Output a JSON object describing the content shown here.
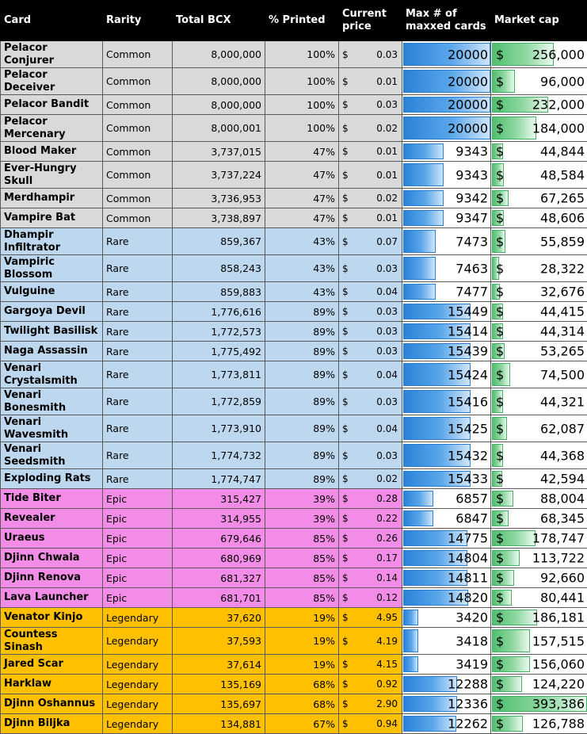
{
  "headers": {
    "card": "Card",
    "rarity": "Rarity",
    "total_bcx": "Total BCX",
    "pct_printed": "% Printed",
    "current_price": "Current price",
    "max_maxxed": "Max # of maxxed cards",
    "market_cap": "Market cap"
  },
  "currency_symbol": "$",
  "rarity_colors": {
    "Common": "#d9d9d9",
    "Rare": "#bdd7ee",
    "Epic": "#f28ce6",
    "Legendary": "#ffc000"
  },
  "databar_colors": {
    "max_cards": "#2a82d8",
    "market_cap": "#4fbf6d"
  },
  "databar_scale": {
    "max_cards_max": 20000,
    "market_cap_max": 393386
  },
  "rows": [
    {
      "card": "Pelacor Conjurer",
      "rarity": "Common",
      "bcx": "8,000,000",
      "pct": "100%",
      "price": "0.03",
      "maxcards": "20000",
      "maxcards_value": 20000,
      "cap": "256,000",
      "cap_value": 256000
    },
    {
      "card": "Pelacor Deceiver",
      "rarity": "Common",
      "bcx": "8,000,000",
      "pct": "100%",
      "price": "0.01",
      "maxcards": "20000",
      "maxcards_value": 20000,
      "cap": "96,000",
      "cap_value": 96000
    },
    {
      "card": "Pelacor Bandit",
      "rarity": "Common",
      "bcx": "8,000,000",
      "pct": "100%",
      "price": "0.03",
      "maxcards": "20000",
      "maxcards_value": 20000,
      "cap": "232,000",
      "cap_value": 232000
    },
    {
      "card": "Pelacor Mercenary",
      "rarity": "Common",
      "bcx": "8,000,001",
      "pct": "100%",
      "price": "0.02",
      "maxcards": "20000",
      "maxcards_value": 20000,
      "cap": "184,000",
      "cap_value": 184000
    },
    {
      "card": "Blood Maker",
      "rarity": "Common",
      "bcx": "3,737,015",
      "pct": "47%",
      "price": "0.01",
      "maxcards": "9343",
      "maxcards_value": 9343,
      "cap": "44,844",
      "cap_value": 44844
    },
    {
      "card": "Ever-Hungry Skull",
      "rarity": "Common",
      "bcx": "3,737,224",
      "pct": "47%",
      "price": "0.01",
      "maxcards": "9343",
      "maxcards_value": 9343,
      "cap": "48,584",
      "cap_value": 48584
    },
    {
      "card": "Merdhampir",
      "rarity": "Common",
      "bcx": "3,736,953",
      "pct": "47%",
      "price": "0.02",
      "maxcards": "9342",
      "maxcards_value": 9342,
      "cap": "67,265",
      "cap_value": 67265
    },
    {
      "card": "Vampire Bat",
      "rarity": "Common",
      "bcx": "3,738,897",
      "pct": "47%",
      "price": "0.01",
      "maxcards": "9347",
      "maxcards_value": 9347,
      "cap": "48,606",
      "cap_value": 48606
    },
    {
      "card": "Dhampir Infiltrator",
      "rarity": "Rare",
      "bcx": "859,367",
      "pct": "43%",
      "price": "0.07",
      "maxcards": "7473",
      "maxcards_value": 7473,
      "cap": "55,859",
      "cap_value": 55859
    },
    {
      "card": "Vampiric Blossom",
      "rarity": "Rare",
      "bcx": "858,243",
      "pct": "43%",
      "price": "0.03",
      "maxcards": "7463",
      "maxcards_value": 7463,
      "cap": "28,322",
      "cap_value": 28322
    },
    {
      "card": "Vulguine",
      "rarity": "Rare",
      "bcx": "859,883",
      "pct": "43%",
      "price": "0.04",
      "maxcards": "7477",
      "maxcards_value": 7477,
      "cap": "32,676",
      "cap_value": 32676
    },
    {
      "card": "Gargoya Devil",
      "rarity": "Rare",
      "bcx": "1,776,616",
      "pct": "89%",
      "price": "0.03",
      "maxcards": "15449",
      "maxcards_value": 15449,
      "cap": "44,415",
      "cap_value": 44415
    },
    {
      "card": "Twilight Basilisk",
      "rarity": "Rare",
      "bcx": "1,772,573",
      "pct": "89%",
      "price": "0.03",
      "maxcards": "15414",
      "maxcards_value": 15414,
      "cap": "44,314",
      "cap_value": 44314
    },
    {
      "card": "Naga Assassin",
      "rarity": "Rare",
      "bcx": "1,775,492",
      "pct": "89%",
      "price": "0.03",
      "maxcards": "15439",
      "maxcards_value": 15439,
      "cap": "53,265",
      "cap_value": 53265
    },
    {
      "card": "Venari Crystalsmith",
      "rarity": "Rare",
      "bcx": "1,773,811",
      "pct": "89%",
      "price": "0.04",
      "maxcards": "15424",
      "maxcards_value": 15424,
      "cap": "74,500",
      "cap_value": 74500
    },
    {
      "card": "Venari Bonesmith",
      "rarity": "Rare",
      "bcx": "1,772,859",
      "pct": "89%",
      "price": "0.03",
      "maxcards": "15416",
      "maxcards_value": 15416,
      "cap": "44,321",
      "cap_value": 44321
    },
    {
      "card": "Venari Wavesmith",
      "rarity": "Rare",
      "bcx": "1,773,910",
      "pct": "89%",
      "price": "0.04",
      "maxcards": "15425",
      "maxcards_value": 15425,
      "cap": "62,087",
      "cap_value": 62087
    },
    {
      "card": "Venari Seedsmith",
      "rarity": "Rare",
      "bcx": "1,774,732",
      "pct": "89%",
      "price": "0.03",
      "maxcards": "15432",
      "maxcards_value": 15432,
      "cap": "44,368",
      "cap_value": 44368
    },
    {
      "card": "Exploding Rats",
      "rarity": "Rare",
      "bcx": "1,774,747",
      "pct": "89%",
      "price": "0.02",
      "maxcards": "15433",
      "maxcards_value": 15433,
      "cap": "42,594",
      "cap_value": 42594
    },
    {
      "card": "Tide Biter",
      "rarity": "Epic",
      "bcx": "315,427",
      "pct": "39%",
      "price": "0.28",
      "maxcards": "6857",
      "maxcards_value": 6857,
      "cap": "88,004",
      "cap_value": 88004
    },
    {
      "card": "Revealer",
      "rarity": "Epic",
      "bcx": "314,955",
      "pct": "39%",
      "price": "0.22",
      "maxcards": "6847",
      "maxcards_value": 6847,
      "cap": "68,345",
      "cap_value": 68345
    },
    {
      "card": "Uraeus",
      "rarity": "Epic",
      "bcx": "679,646",
      "pct": "85%",
      "price": "0.26",
      "maxcards": "14775",
      "maxcards_value": 14775,
      "cap": "178,747",
      "cap_value": 178747
    },
    {
      "card": "Djinn Chwala",
      "rarity": "Epic",
      "bcx": "680,969",
      "pct": "85%",
      "price": "0.17",
      "maxcards": "14804",
      "maxcards_value": 14804,
      "cap": "113,722",
      "cap_value": 113722
    },
    {
      "card": "Djinn Renova",
      "rarity": "Epic",
      "bcx": "681,327",
      "pct": "85%",
      "price": "0.14",
      "maxcards": "14811",
      "maxcards_value": 14811,
      "cap": "92,660",
      "cap_value": 92660
    },
    {
      "card": "Lava Launcher",
      "rarity": "Epic",
      "bcx": "681,701",
      "pct": "85%",
      "price": "0.12",
      "maxcards": "14820",
      "maxcards_value": 14820,
      "cap": "80,441",
      "cap_value": 80441
    },
    {
      "card": "Venator Kinjo",
      "rarity": "Legendary",
      "bcx": "37,620",
      "pct": "19%",
      "price": "4.95",
      "maxcards": "3420",
      "maxcards_value": 3420,
      "cap": "186,181",
      "cap_value": 186181
    },
    {
      "card": "Countess Sinash",
      "rarity": "Legendary",
      "bcx": "37,593",
      "pct": "19%",
      "price": "4.19",
      "maxcards": "3418",
      "maxcards_value": 3418,
      "cap": "157,515",
      "cap_value": 157515
    },
    {
      "card": "Jared Scar",
      "rarity": "Legendary",
      "bcx": "37,614",
      "pct": "19%",
      "price": "4.15",
      "maxcards": "3419",
      "maxcards_value": 3419,
      "cap": "156,060",
      "cap_value": 156060
    },
    {
      "card": "Harklaw",
      "rarity": "Legendary",
      "bcx": "135,169",
      "pct": "68%",
      "price": "0.92",
      "maxcards": "12288",
      "maxcards_value": 12288,
      "cap": "124,220",
      "cap_value": 124220
    },
    {
      "card": "Djinn Oshannus",
      "rarity": "Legendary",
      "bcx": "135,697",
      "pct": "68%",
      "price": "2.90",
      "maxcards": "12336",
      "maxcards_value": 12336,
      "cap": "393,386",
      "cap_value": 393386
    },
    {
      "card": "Djinn Biljka",
      "rarity": "Legendary",
      "bcx": "134,881",
      "pct": "67%",
      "price": "0.94",
      "maxcards": "12262",
      "maxcards_value": 12262,
      "cap": "126,788",
      "cap_value": 126788
    }
  ]
}
